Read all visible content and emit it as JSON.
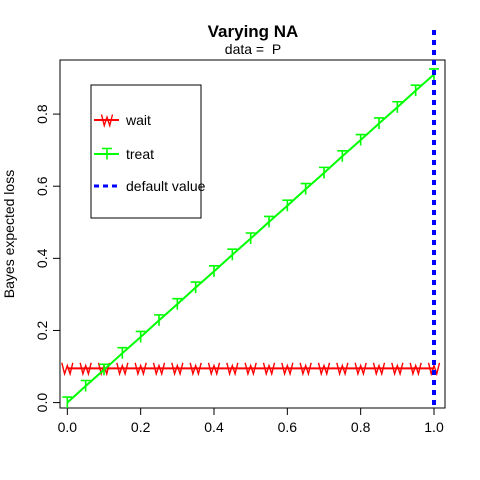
{
  "chart_data": {
    "type": "line",
    "title": "Varying NA",
    "subtitle": "data =  P",
    "xlabel": "",
    "ylabel": "Bayes expected loss",
    "xlim": [
      -0.02,
      1.03
    ],
    "ylim": [
      -0.015,
      0.95
    ],
    "x_ticks": [
      0.0,
      0.2,
      0.4,
      0.6,
      0.8,
      1.0
    ],
    "x_tick_labels": [
      "0.0",
      "0.2",
      "0.4",
      "0.6",
      "0.8",
      "1.0"
    ],
    "y_ticks": [
      0.0,
      0.2,
      0.4,
      0.6,
      0.8
    ],
    "y_tick_labels": [
      "0.0",
      "0.2",
      "0.4",
      "0.6",
      "0.8"
    ],
    "grid": false,
    "legend_position": "top-left",
    "x": [
      0.0,
      0.05,
      0.1,
      0.15,
      0.2,
      0.25,
      0.3,
      0.35,
      0.4,
      0.45,
      0.5,
      0.55,
      0.6,
      0.65,
      0.7,
      0.75,
      0.8,
      0.85,
      0.9,
      0.95,
      1.0
    ],
    "series": [
      {
        "name": "wait",
        "color": "#ff0000",
        "marker": "W",
        "values": [
          0.095,
          0.095,
          0.095,
          0.095,
          0.095,
          0.095,
          0.095,
          0.095,
          0.095,
          0.095,
          0.095,
          0.095,
          0.095,
          0.095,
          0.095,
          0.095,
          0.095,
          0.095,
          0.095,
          0.095,
          0.095
        ]
      },
      {
        "name": "treat",
        "color": "#00ff00",
        "marker": "T",
        "values": [
          0.0,
          0.046,
          0.091,
          0.137,
          0.182,
          0.228,
          0.273,
          0.319,
          0.364,
          0.41,
          0.455,
          0.501,
          0.546,
          0.592,
          0.637,
          0.683,
          0.728,
          0.774,
          0.819,
          0.865,
          0.91
        ]
      }
    ],
    "reference_line": {
      "name": "default value",
      "x": 1.0,
      "color": "#0000ff",
      "style": "dashed"
    }
  }
}
